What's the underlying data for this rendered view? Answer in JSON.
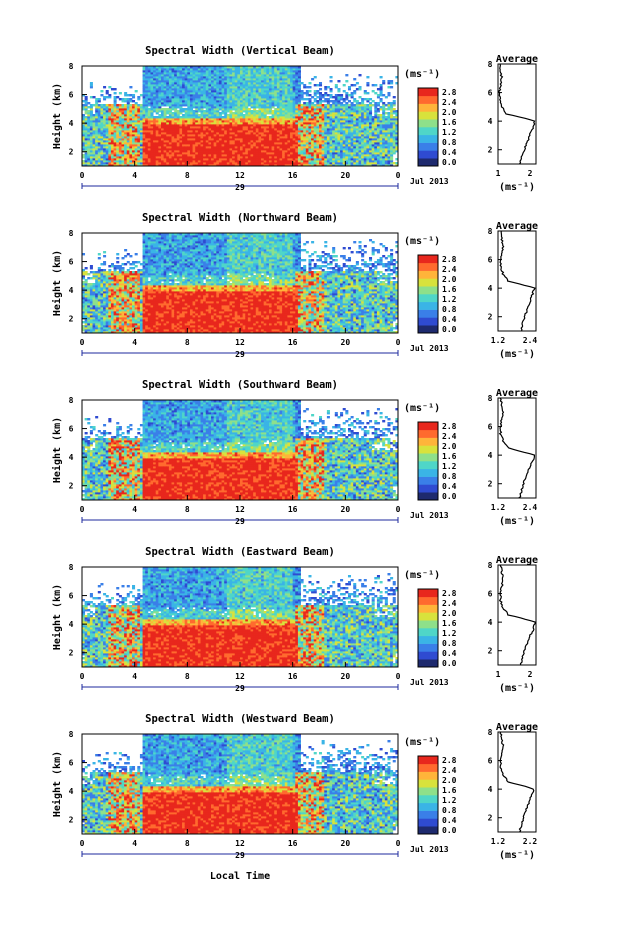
{
  "figure": {
    "xlabel": "Local Time",
    "xticks": [
      "0",
      "4",
      "8",
      "12",
      "16",
      "20",
      "0"
    ],
    "day_label": "29",
    "date_label": "Jul 2013",
    "ylabel": "Height (km)",
    "yticks": [
      "2",
      "4",
      "6",
      "8"
    ],
    "cbar_unit": "(ms⁻¹)",
    "cbar_ticks": [
      "0.0",
      "0.4",
      "0.8",
      "1.2",
      "1.6",
      "2.0",
      "2.4",
      "2.8"
    ],
    "avg_title": "Average",
    "avg_xlabel": "(ms⁻¹)",
    "avg_yticks": [
      "2",
      "4",
      "6",
      "8"
    ],
    "colors": {
      "colormap": [
        "#1e2a6e",
        "#2f4bd1",
        "#3a7fe8",
        "#3ab4e6",
        "#4fd6c8",
        "#8ee08a",
        "#d8e23c",
        "#ffb43a",
        "#ff6a2e",
        "#e8271d"
      ]
    }
  },
  "chart_data": [
    {
      "type": "heatmap",
      "title": "Spectral Width (Vertical Beam)",
      "x_range_hours": [
        0,
        24
      ],
      "y_range_km": [
        1,
        8
      ],
      "colorbar_range": [
        0.0,
        2.8
      ],
      "average_profile": {
        "xticks": [
          "1",
          "2"
        ],
        "xlim": [
          1.0,
          2.5
        ],
        "heights_km": [
          1,
          2,
          3,
          3.5,
          4,
          4.2,
          4.5,
          5,
          5.5,
          6,
          6.5,
          7,
          7.5,
          8
        ],
        "values": [
          1.85,
          2.05,
          2.25,
          2.4,
          2.45,
          2.1,
          1.35,
          1.15,
          1.1,
          1.05,
          1.1,
          1.15,
          1.1,
          1.1
        ]
      }
    },
    {
      "type": "heatmap",
      "title": "Spectral Width (Northward Beam)",
      "x_range_hours": [
        0,
        24
      ],
      "y_range_km": [
        1,
        8
      ],
      "colorbar_range": [
        0.0,
        2.8
      ],
      "average_profile": {
        "xticks": [
          "1.2",
          "2.4"
        ],
        "xlim": [
          1.0,
          2.5
        ],
        "heights_km": [
          1,
          2,
          3,
          3.5,
          4,
          4.2,
          4.5,
          5,
          5.5,
          6,
          6.5,
          7,
          7.5,
          8
        ],
        "values": [
          1.9,
          2.05,
          2.25,
          2.35,
          2.45,
          2.05,
          1.4,
          1.2,
          1.1,
          1.1,
          1.15,
          1.2,
          1.15,
          1.1
        ]
      }
    },
    {
      "type": "heatmap",
      "title": "Spectral Width (Southward Beam)",
      "x_range_hours": [
        0,
        24
      ],
      "y_range_km": [
        1,
        8
      ],
      "colorbar_range": [
        0.0,
        2.8
      ],
      "average_profile": {
        "xticks": [
          "1.2",
          "2.4"
        ],
        "xlim": [
          1.0,
          2.5
        ],
        "heights_km": [
          1,
          2,
          3,
          3.5,
          4,
          4.2,
          4.5,
          5,
          5.5,
          6,
          6.5,
          7,
          7.5,
          8
        ],
        "values": [
          1.85,
          2.0,
          2.2,
          2.35,
          2.45,
          2.05,
          1.4,
          1.2,
          1.1,
          1.1,
          1.15,
          1.2,
          1.15,
          1.1
        ]
      }
    },
    {
      "type": "heatmap",
      "title": "Spectral Width (Eastward Beam)",
      "x_range_hours": [
        0,
        24
      ],
      "y_range_km": [
        1,
        8
      ],
      "colorbar_range": [
        0.0,
        2.8
      ],
      "average_profile": {
        "xticks": [
          "1",
          "2"
        ],
        "xlim": [
          1.0,
          2.5
        ],
        "heights_km": [
          1,
          2,
          3,
          3.5,
          4,
          4.2,
          4.5,
          5,
          5.5,
          6,
          6.5,
          7,
          7.5,
          8
        ],
        "values": [
          1.9,
          2.05,
          2.25,
          2.4,
          2.45,
          2.1,
          1.4,
          1.2,
          1.1,
          1.1,
          1.15,
          1.2,
          1.15,
          1.1
        ]
      }
    },
    {
      "type": "heatmap",
      "title": "Spectral Width (Westward Beam)",
      "x_range_hours": [
        0,
        24
      ],
      "y_range_km": [
        1,
        8
      ],
      "colorbar_range": [
        0.0,
        2.8
      ],
      "average_profile": {
        "xticks": [
          "1.2",
          "2.2"
        ],
        "xlim": [
          1.0,
          2.5
        ],
        "heights_km": [
          1,
          2,
          3,
          3.5,
          4,
          4.2,
          4.5,
          5,
          5.5,
          6,
          6.5,
          7,
          7.5,
          8
        ],
        "values": [
          1.85,
          2.0,
          2.2,
          2.3,
          2.4,
          2.05,
          1.4,
          1.2,
          1.1,
          1.1,
          1.15,
          1.2,
          1.15,
          1.1
        ]
      }
    }
  ]
}
